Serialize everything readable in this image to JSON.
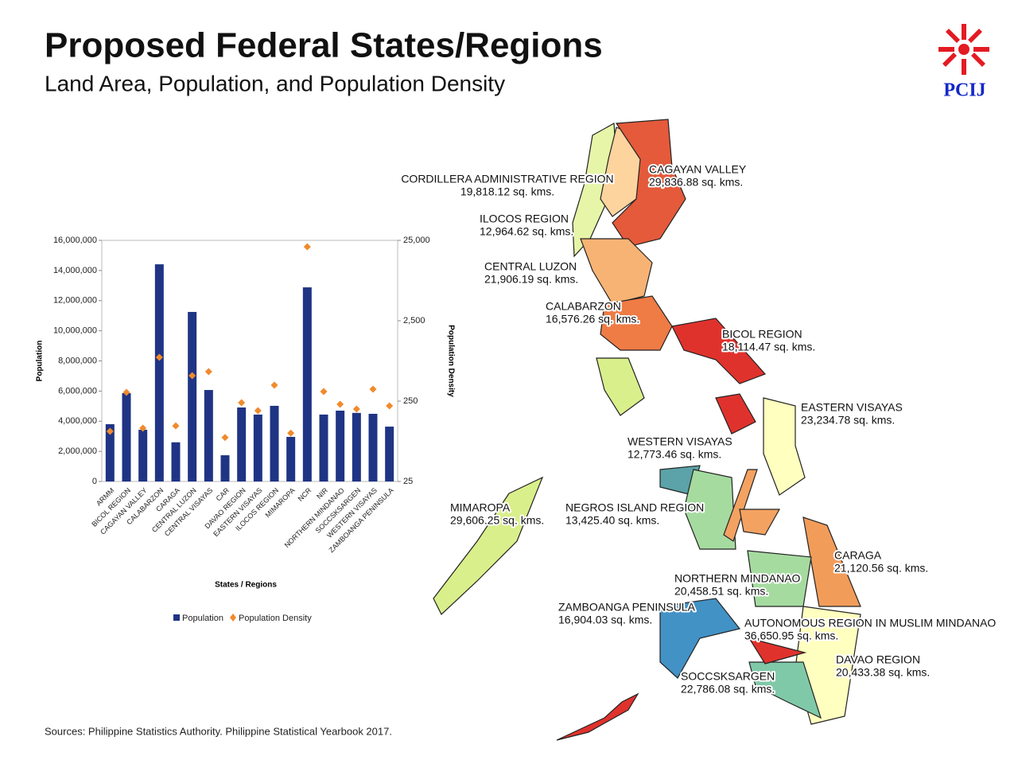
{
  "header": {
    "title": "Proposed Federal States/Regions",
    "subtitle": "Land Area, Population, and Population Density",
    "logo": "PCIJ"
  },
  "chart_data": {
    "type": "bar",
    "categories": [
      "ARMM",
      "BICOL REGION",
      "CAGAYAN VALLEY",
      "CALABARZON",
      "CARAGA",
      "CENTRAL LUZON",
      "CENTRAL VISAYAS",
      "CAR",
      "DAVAO REGION",
      "EASTERN VISAYAS",
      "ILOCOS REGION",
      "MIMAROPA",
      "NCR",
      "NIR",
      "NORTHERN MINDANAO",
      "SOCCSKSARGEN",
      "WESTERN VISAYAS",
      "ZAMBOANGA PENINSULA"
    ],
    "series": [
      {
        "name": "Population",
        "type": "bar",
        "color": "#1f3484",
        "values": [
          3800000,
          5860000,
          3430000,
          14410000,
          2600000,
          11250000,
          6070000,
          1740000,
          4910000,
          4440000,
          5020000,
          2960000,
          12880000,
          4440000,
          4700000,
          4550000,
          4490000,
          3640000
        ]
      },
      {
        "name": "Population Density",
        "type": "scatter",
        "axis": "y2",
        "color": "#f08a2c",
        "values": [
          105,
          321,
          115,
          877,
          123,
          519,
          581,
          88,
          239,
          190,
          394,
          100,
          20800,
          329,
          228,
          199,
          352,
          218
        ]
      }
    ],
    "ylim": [
      0,
      16000000
    ],
    "yticks": [
      0,
      {
        "value": 2000000,
        "label": "2,000,000"
      },
      {
        "value": 4000000,
        "label": "4,000,000"
      },
      {
        "value": 6000000,
        "label": "6,000,000"
      },
      {
        "value": 8000000,
        "label": "8,000,000"
      },
      {
        "value": 10000000,
        "label": "10,000,000"
      },
      {
        "value": 12000000,
        "label": "12,000,000"
      },
      {
        "value": 14000000,
        "label": "14,000,000"
      },
      {
        "value": 16000000,
        "label": "16,000,000"
      }
    ],
    "y2lim": [
      25,
      25000
    ],
    "y2log": true,
    "y2ticks": [
      25,
      250,
      {
        "value": 2500,
        "label": "2,500"
      },
      {
        "value": 25000,
        "label": "25,000"
      }
    ],
    "ylabel": "Population",
    "y2label": "Population Density",
    "xlabel": "States / Regions",
    "legend": "bottom"
  },
  "map": {
    "labels": [
      {
        "name": "CORDILLERA ADMINISTRATIVE REGION",
        "area": "19,818.12 sq. kms."
      },
      {
        "name": "CAGAYAN VALLEY",
        "area": "29,836.88 sq. kms."
      },
      {
        "name": "ILOCOS REGION",
        "area": "12,964.62 sq. kms."
      },
      {
        "name": "CENTRAL LUZON",
        "area": "21,906.19 sq. kms."
      },
      {
        "name": "CALABARZON",
        "area": "16,576.26 sq. kms."
      },
      {
        "name": "BICOL REGION",
        "area": "18,114.47 sq. kms."
      },
      {
        "name": "EASTERN VISAYAS",
        "area": "23,234.78 sq. kms."
      },
      {
        "name": "WESTERN VISAYAS",
        "area": "12,773.46 sq. kms."
      },
      {
        "name": "MIMAROPA",
        "area": "29,606.25 sq. kms."
      },
      {
        "name": "NEGROS ISLAND REGION",
        "area": "13,425.40 sq. kms."
      },
      {
        "name": "CARAGA",
        "area": "21,120.56 sq. kms."
      },
      {
        "name": "NORTHERN MINDANAO",
        "area": "20,458.51 sq. kms."
      },
      {
        "name": "ZAMBOANGA PENINSULA",
        "area": "16,904.03 sq. kms."
      },
      {
        "name": "AUTONOMOUS REGION IN MUSLIM MINDANAO",
        "area": "36,650.95 sq. kms."
      },
      {
        "name": "DAVAO REGION",
        "area": "20,433.38 sq. kms."
      },
      {
        "name": "SOCCSKSARGEN",
        "area": "22,786.08 sq. kms."
      }
    ]
  },
  "footer": {
    "source": "Sources:  Philippine Statistics Authority. Philippine Statistical Yearbook 2017."
  }
}
